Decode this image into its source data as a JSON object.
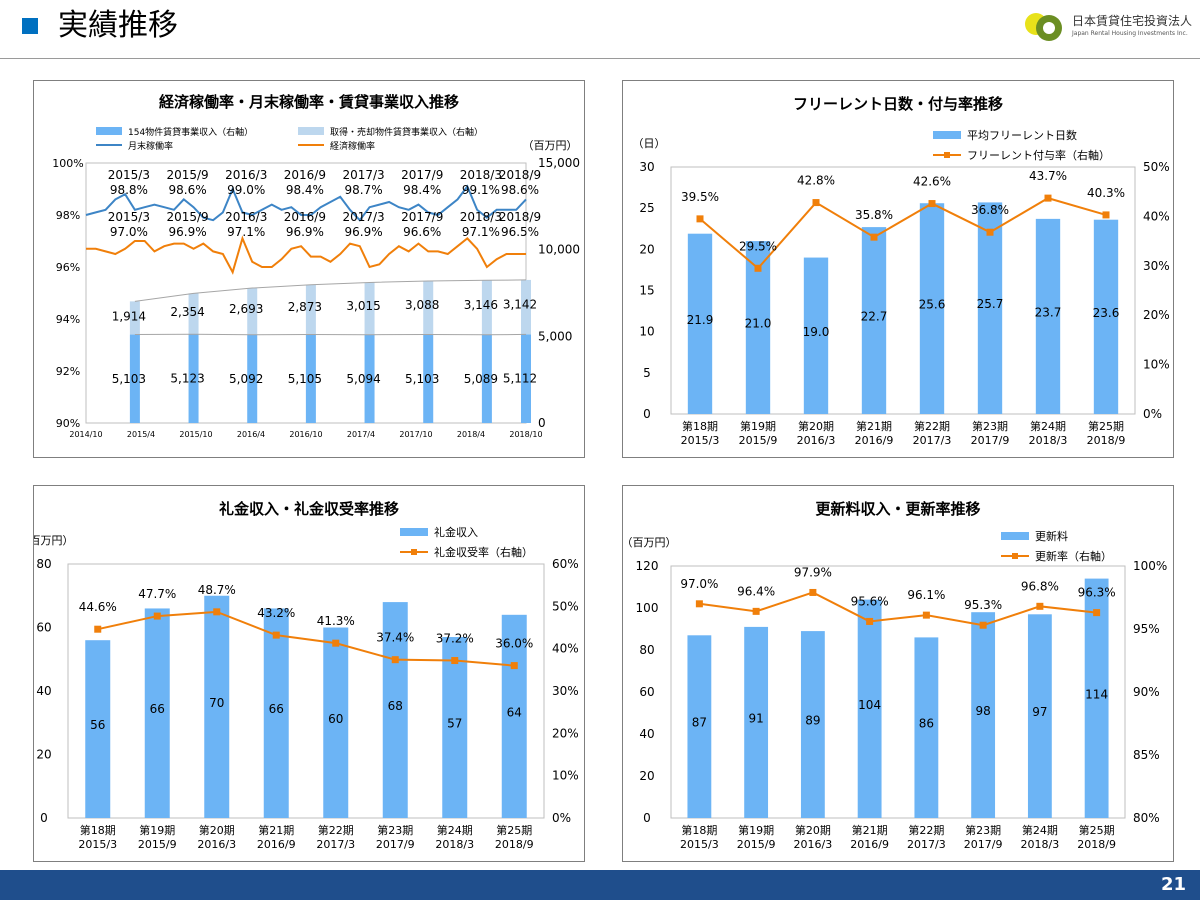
{
  "page": {
    "title": "実績推移",
    "number": "21"
  },
  "logo": {
    "name_ja": "日本賃貸住宅投資法人",
    "name_en": "Japan Rental Housing Investments Inc."
  },
  "colors": {
    "blue_bar": "#6cb4f5",
    "light_bar": "#bdd7ee",
    "blue_line": "#3d85c6",
    "orange_line": "#f07f0a",
    "footer": "#1f4e8c",
    "accent": "#0070c0"
  },
  "chart_data": [
    {
      "id": "occupancy",
      "type": "bar+line",
      "title": "経済稼働率・月末稼働率・賃貸事業収入推移",
      "y_left": {
        "ticks": [
          "100%",
          "98%",
          "96%",
          "94%",
          "92%",
          "90%"
        ],
        "min": 90,
        "max": 100
      },
      "y_right": {
        "unit": "（百万円）",
        "ticks": [
          "15,000",
          "10,000",
          "5,000",
          "0"
        ],
        "min": 0,
        "max": 15000
      },
      "x_ticks": [
        "2014/10",
        "2015/4",
        "2015/10",
        "2016/4",
        "2016/10",
        "2017/4",
        "2017/10",
        "2018/4",
        "2018/10"
      ],
      "legend": [
        "154物件賃貸事業収入（右軸）",
        "取得・売却物件賃貸事業収入（右軸）",
        "月末稼働率",
        "経済稼働率"
      ],
      "bars_base": [
        5103,
        5123,
        5092,
        5105,
        5094,
        5103,
        5089,
        5112
      ],
      "bars_top": [
        1914,
        2354,
        2693,
        2873,
        3015,
        3088,
        3146,
        3142
      ],
      "bars_base_labels": [
        "5,103",
        "5,123",
        "5,092",
        "5,105",
        "5,094",
        "5,103",
        "5,089",
        "5,112"
      ],
      "bars_top_labels": [
        "1,914",
        "2,354",
        "2,693",
        "2,873",
        "3,015",
        "3,088",
        "3,146",
        "3,142"
      ],
      "month_end_rate": [
        98.0,
        98.1,
        98.2,
        98.6,
        98.8,
        98.2,
        98.3,
        98.4,
        98.3,
        98.2,
        98.6,
        98.3,
        97.9,
        97.8,
        98.1,
        99.0,
        98.1,
        98.0,
        98.2,
        98.4,
        98.2,
        98.3,
        98.0,
        98.0,
        98.3,
        98.5,
        98.7,
        98.2,
        97.8,
        98.3,
        98.4,
        98.5,
        98.3,
        98.2,
        98.4,
        98.1,
        98.0,
        98.3,
        98.6,
        99.1,
        98.2,
        97.9,
        98.2,
        98.2,
        98.2,
        98.6
      ],
      "economic_rate": [
        96.7,
        96.7,
        96.6,
        96.5,
        96.7,
        97.0,
        97.0,
        96.6,
        96.8,
        96.9,
        96.9,
        96.7,
        96.9,
        96.6,
        96.5,
        95.8,
        97.1,
        96.2,
        96.0,
        96.0,
        96.3,
        96.7,
        96.8,
        96.4,
        96.4,
        96.2,
        96.5,
        96.9,
        96.8,
        96.0,
        96.1,
        96.5,
        96.8,
        96.6,
        96.9,
        96.6,
        96.6,
        96.5,
        96.8,
        97.1,
        96.7,
        96.0,
        96.3,
        96.5,
        96.5,
        96.5
      ],
      "month_end_annotations": [
        {
          "period": "2015/3",
          "value": "98.8%"
        },
        {
          "period": "2015/9",
          "value": "98.6%"
        },
        {
          "period": "2016/3",
          "value": "99.0%"
        },
        {
          "period": "2016/9",
          "value": "98.4%"
        },
        {
          "period": "2017/3",
          "value": "98.7%"
        },
        {
          "period": "2017/9",
          "value": "98.4%"
        },
        {
          "period": "2018/3",
          "value": "99.1%"
        },
        {
          "period": "2018/9",
          "value": "98.6%"
        }
      ],
      "economic_annotations": [
        {
          "period": "2015/3",
          "value": "97.0%"
        },
        {
          "period": "2015/9",
          "value": "96.9%"
        },
        {
          "period": "2016/3",
          "value": "97.1%"
        },
        {
          "period": "2016/9",
          "value": "96.9%"
        },
        {
          "period": "2017/3",
          "value": "96.9%"
        },
        {
          "period": "2017/9",
          "value": "96.6%"
        },
        {
          "period": "2018/3",
          "value": "97.1%"
        },
        {
          "period": "2018/9",
          "value": "96.5%"
        }
      ]
    },
    {
      "id": "freerent",
      "type": "bar+line",
      "title": "フリーレント日数・付与率推移",
      "y_left": {
        "unit": "（日）",
        "ticks": [
          "30",
          "25",
          "20",
          "15",
          "10",
          "5",
          "0"
        ],
        "min": 0,
        "max": 30
      },
      "y_right": {
        "ticks": [
          "50%",
          "40%",
          "30%",
          "20%",
          "10%",
          "0%"
        ],
        "min": 0,
        "max": 50
      },
      "categories": [
        "第18期",
        "第19期",
        "第20期",
        "第21期",
        "第22期",
        "第23期",
        "第24期",
        "第25期"
      ],
      "category_dates": [
        "2015/3",
        "2015/9",
        "2016/3",
        "2016/9",
        "2017/3",
        "2017/9",
        "2018/3",
        "2018/9"
      ],
      "legend": [
        "平均フリーレント日数",
        "フリーレント付与率（右軸）"
      ],
      "bars": [
        21.9,
        21.0,
        19.0,
        22.7,
        25.6,
        25.7,
        23.7,
        23.6
      ],
      "bar_labels": [
        "21.9",
        "21.0",
        "19.0",
        "22.7",
        "25.6",
        "25.7",
        "23.7",
        "23.6"
      ],
      "line": [
        39.5,
        29.5,
        42.8,
        35.8,
        42.6,
        36.8,
        43.7,
        40.3
      ],
      "line_labels": [
        "39.5%",
        "29.5%",
        "42.8%",
        "35.8%",
        "42.6%",
        "36.8%",
        "43.7%",
        "40.3%"
      ]
    },
    {
      "id": "keymoney",
      "type": "bar+line",
      "title": "礼金収入・礼金収受率推移",
      "y_left": {
        "unit": "（百万円）",
        "ticks": [
          "80",
          "60",
          "40",
          "20",
          "0"
        ],
        "min": 0,
        "max": 80
      },
      "y_right": {
        "ticks": [
          "60%",
          "50%",
          "40%",
          "30%",
          "20%",
          "10%",
          "0%"
        ],
        "min": 0,
        "max": 60
      },
      "categories": [
        "第18期",
        "第19期",
        "第20期",
        "第21期",
        "第22期",
        "第23期",
        "第24期",
        "第25期"
      ],
      "category_dates": [
        "2015/3",
        "2015/9",
        "2016/3",
        "2016/9",
        "2017/3",
        "2017/9",
        "2018/3",
        "2018/9"
      ],
      "legend": [
        "礼金収入",
        "礼金収受率（右軸）"
      ],
      "bars": [
        56,
        66,
        70,
        66,
        60,
        68,
        57,
        64
      ],
      "bar_labels": [
        "56",
        "66",
        "70",
        "66",
        "60",
        "68",
        "57",
        "64"
      ],
      "line": [
        44.6,
        47.7,
        48.7,
        43.2,
        41.3,
        37.4,
        37.2,
        36.0
      ],
      "line_labels": [
        "44.6%",
        "47.7%",
        "48.7%",
        "43.2%",
        "41.3%",
        "37.4%",
        "37.2%",
        "36.0%"
      ]
    },
    {
      "id": "renewal",
      "type": "bar+line",
      "title": "更新料収入・更新率推移",
      "y_left": {
        "unit": "（百万円）",
        "ticks": [
          "120",
          "100",
          "80",
          "60",
          "40",
          "20",
          "0"
        ],
        "min": 0,
        "max": 120
      },
      "y_right": {
        "ticks": [
          "100%",
          "95%",
          "90%",
          "85%",
          "80%"
        ],
        "min": 80,
        "max": 100
      },
      "categories": [
        "第18期",
        "第19期",
        "第20期",
        "第21期",
        "第22期",
        "第23期",
        "第24期",
        "第25期"
      ],
      "category_dates": [
        "2015/3",
        "2015/9",
        "2016/3",
        "2016/9",
        "2017/3",
        "2017/9",
        "2018/3",
        "2018/9"
      ],
      "legend": [
        "更新料",
        "更新率（右軸）"
      ],
      "bars": [
        87,
        91,
        89,
        104,
        86,
        98,
        97,
        114
      ],
      "bar_labels": [
        "87",
        "91",
        "89",
        "104",
        "86",
        "98",
        "97",
        "114"
      ],
      "line": [
        97.0,
        96.4,
        97.9,
        95.6,
        96.1,
        95.3,
        96.8,
        96.3
      ],
      "line_labels": [
        "97.0%",
        "96.4%",
        "97.9%",
        "95.6%",
        "96.1%",
        "95.3%",
        "96.8%",
        "96.3%"
      ]
    }
  ]
}
